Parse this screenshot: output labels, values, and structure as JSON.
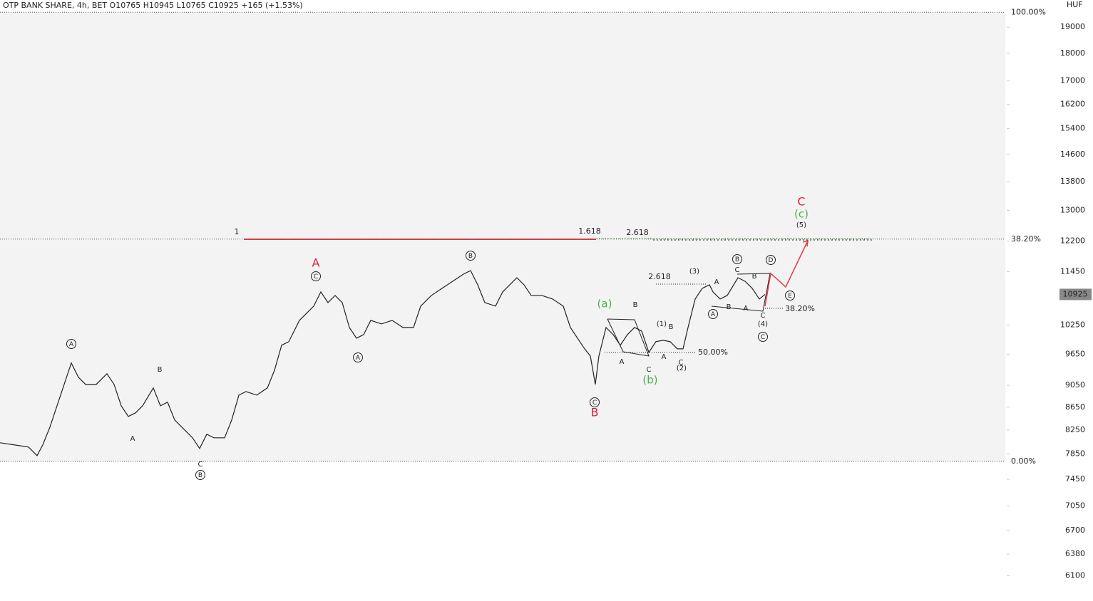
{
  "chart_data": {
    "type": "line",
    "title": "OTP BANK SHARE, 4h, BET  O10765  H10945  L10765  C10925  +165 (+1.53%)",
    "unit": "HUF",
    "log_scale": true,
    "color": "#222222",
    "x": [
      0,
      20,
      40,
      52,
      60,
      70,
      80,
      90,
      100,
      110,
      120,
      135,
      150,
      160,
      170,
      180,
      190,
      200,
      215,
      225,
      235,
      245,
      255,
      270,
      280,
      290,
      300,
      315,
      325,
      335,
      345,
      360,
      375,
      385,
      395,
      405,
      420,
      430,
      440,
      450,
      460,
      470,
      480,
      490,
      500,
      510,
      520,
      535,
      550,
      565,
      580,
      590,
      605,
      620,
      635,
      650,
      660,
      670,
      680,
      695,
      705,
      715,
      725,
      735,
      745,
      760,
      775,
      790,
      800,
      810,
      820,
      828,
      835,
      840,
      850,
      860,
      870,
      880,
      890,
      900,
      910,
      920,
      930,
      940,
      950,
      958,
      965,
      975,
      985,
      995,
      1000,
      1010,
      1020,
      1035,
      1045,
      1055,
      1065,
      1073
    ],
    "values": [
      8035,
      8000,
      7964,
      7824,
      8000,
      8300,
      8675,
      9067,
      9477,
      9202,
      9067,
      9067,
      9270,
      9067,
      8675,
      8485,
      8548,
      8675,
      9001,
      8675,
      8739,
      8423,
      8300,
      8118,
      7941,
      8178,
      8118,
      8118,
      8423,
      8868,
      8934,
      8868,
      9001,
      9338,
      9833,
      9906,
      10353,
      10507,
      10663,
      10982,
      10742,
      10901,
      10742,
      10202,
      9978,
      10052,
      10353,
      10277,
      10353,
      10202,
      10202,
      10663,
      10901,
      11063,
      11226,
      11393,
      11477,
      11144,
      10742,
      10663,
      10982,
      11144,
      11309,
      11144,
      10901,
      10901,
      10821,
      10663,
      10202,
      9978,
      9760,
      9618,
      9067,
      9618,
      10202,
      10052,
      9833,
      10052,
      10202,
      10126,
      9689,
      9906,
      9934,
      9906,
      9760,
      9760,
      10202,
      10821,
      11063,
      11144,
      10982,
      10821,
      10901,
      11309,
      11226,
      11063,
      10821,
      10925
    ],
    "xlim": [
      0,
      1410
    ],
    "ylim": [
      5790,
      20100
    ],
    "yticks": [
      19000,
      18000,
      17000,
      16200,
      15400,
      14600,
      13800,
      13000,
      12200,
      11450,
      10250,
      9650,
      9050,
      8650,
      8250,
      7850,
      7450,
      7050,
      6700,
      6380,
      6100
    ],
    "last_price": 10925,
    "fib_levels": [
      {
        "value": 19594,
        "label": "100.00%"
      },
      {
        "value": 12250,
        "label": "38.20%"
      },
      {
        "value": 7733,
        "label": "0.00%"
      }
    ],
    "fib_labels": [
      "1",
      "1.618",
      "2.618",
      "2.618",
      "50.00%",
      "38.20%"
    ],
    "wave_labels": [
      "A",
      "B",
      "C",
      "(a)",
      "(b)",
      "(c)",
      "A",
      "B",
      "A",
      "C",
      "B",
      "C",
      "A",
      "B",
      "C",
      "D",
      "E",
      "A",
      "B",
      "C",
      "A",
      "B",
      "C",
      "(1)",
      "B",
      "A",
      "C",
      "(2)",
      "(3)",
      "A",
      "C",
      "B",
      "B",
      "A",
      "C",
      "(4)",
      "(5)"
    ]
  }
}
